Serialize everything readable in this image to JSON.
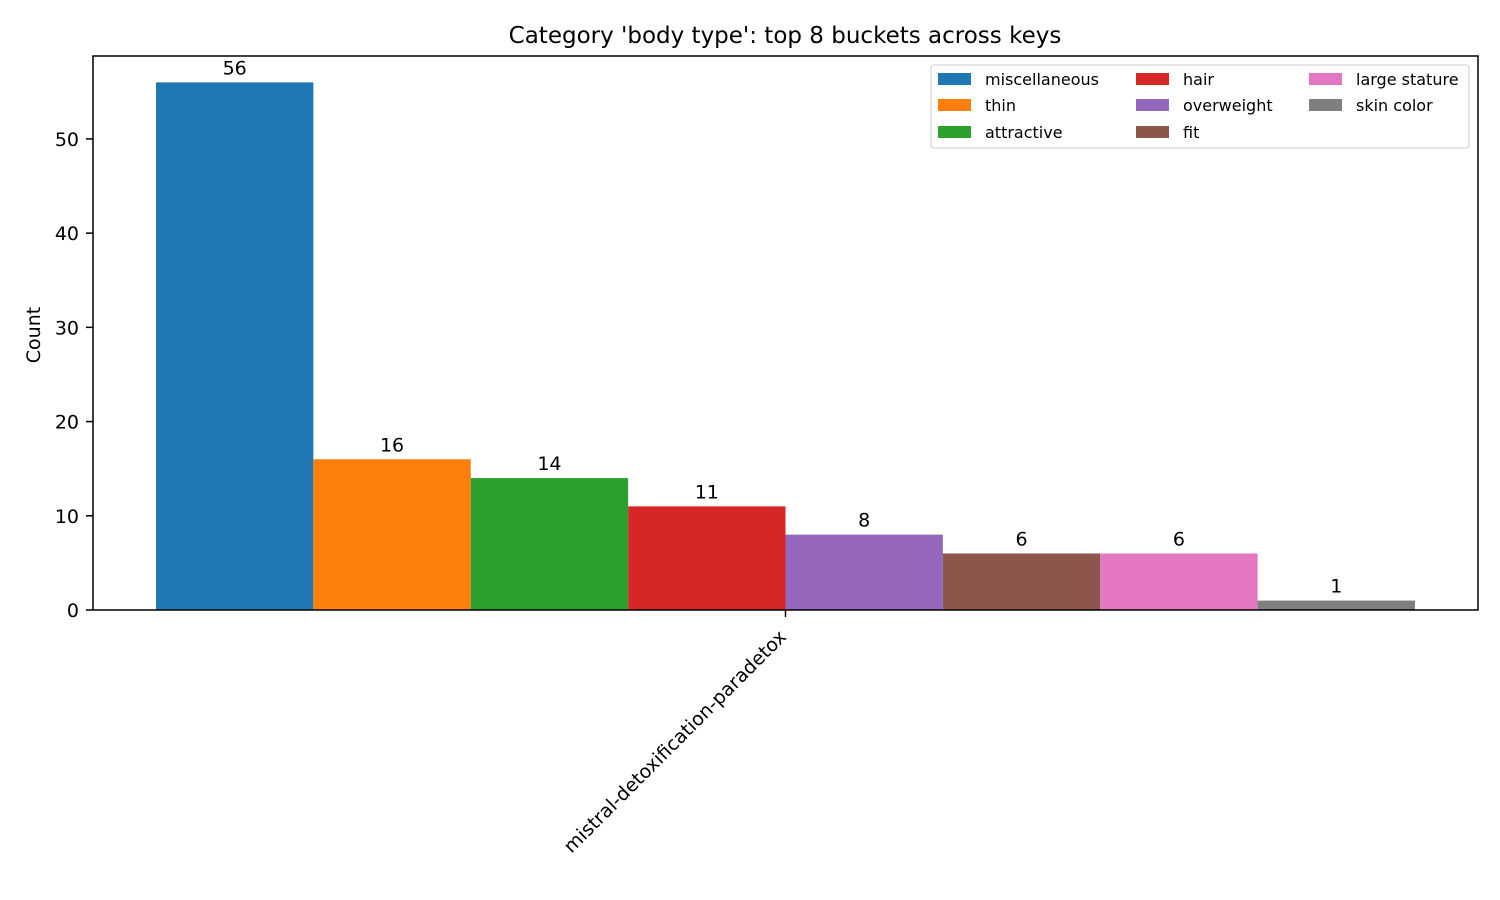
{
  "chart_data": {
    "type": "bar",
    "title": "Category 'body type': top 8 buckets across keys",
    "xlabel": "",
    "ylabel": "Count",
    "ylim": [
      0,
      58.8
    ],
    "yticks": [
      0,
      10,
      20,
      30,
      40,
      50
    ],
    "grid": false,
    "legend_position": "top-right",
    "legend_columns": 3,
    "categories": [
      "mistral-detoxification-paradetox"
    ],
    "series": [
      {
        "name": "miscellaneous",
        "values": [
          56
        ],
        "color": "#1f77b4"
      },
      {
        "name": "thin",
        "values": [
          16
        ],
        "color": "#ff7f0e"
      },
      {
        "name": "attractive",
        "values": [
          14
        ],
        "color": "#2ca02c"
      },
      {
        "name": "hair",
        "values": [
          11
        ],
        "color": "#d62728"
      },
      {
        "name": "overweight",
        "values": [
          8
        ],
        "color": "#9467bd"
      },
      {
        "name": "fit",
        "values": [
          6
        ],
        "color": "#8c564b"
      },
      {
        "name": "large stature",
        "values": [
          6
        ],
        "color": "#e377c2"
      },
      {
        "name": "skin color",
        "values": [
          1
        ],
        "color": "#7f7f7f"
      }
    ]
  }
}
